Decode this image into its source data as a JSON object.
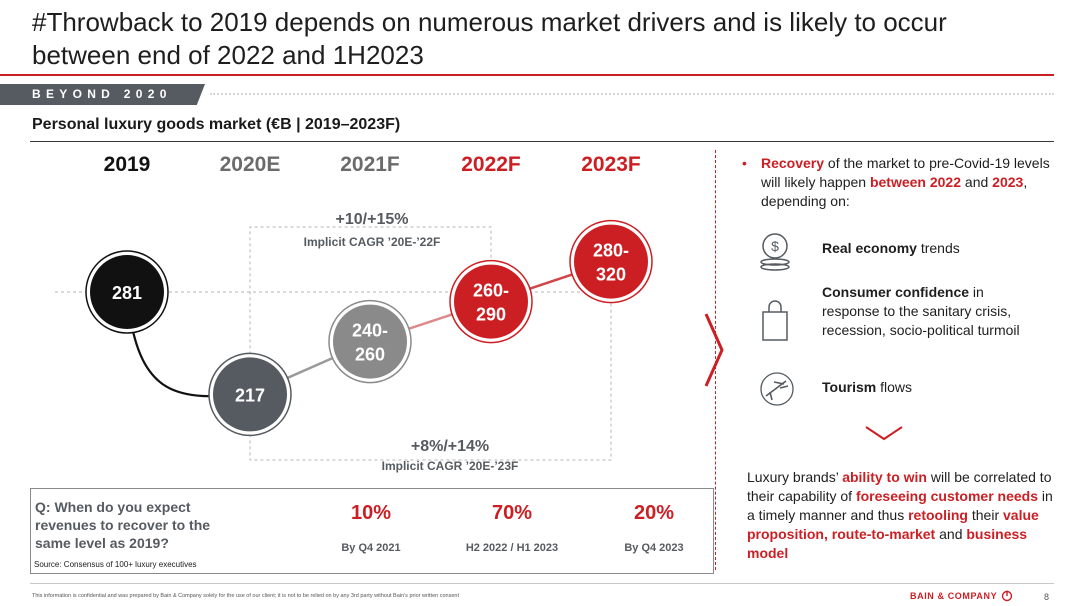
{
  "slide": {
    "title": "#Throwback to 2019 depends on numerous market drivers and is likely to occur between end of 2022 and 1H2023",
    "section_tag": "BEYOND 2020",
    "chart_title": "Personal luxury goods market (€B | 2019–2023F)"
  },
  "chart_data": {
    "type": "line",
    "title": "Personal luxury goods market (€B | 2019–2023F)",
    "categories": [
      "2019",
      "2020E",
      "2021F",
      "2022F",
      "2023F"
    ],
    "values_low": [
      281,
      217,
      240,
      260,
      280
    ],
    "values_high": [
      281,
      217,
      260,
      290,
      320
    ],
    "labels": [
      "281",
      "217",
      "240-\n260",
      "260-\n290",
      "280-\n320"
    ],
    "annotations": [
      {
        "value": "+10/+15%",
        "label": "Implicit CAGR ’20E-’22F"
      },
      {
        "value": "+8%/+14%",
        "label": "Implicit CAGR ’20E-’23F"
      }
    ],
    "colors": {
      "2019": "#111111",
      "2020E": "#555b60",
      "2021F": "#8a8a8a",
      "2022F": "#cc1f24",
      "2023F": "#cc1f24"
    },
    "grid": false
  },
  "survey": {
    "question": "Q: When do you expect revenues to recover to the same level as 2019?",
    "source": "Source: Consensus of 100+ luxury executives",
    "answers": [
      {
        "pct": "10%",
        "when": "By Q4 2021"
      },
      {
        "pct": "70%",
        "when": "H2 2022 / H1 2023"
      },
      {
        "pct": "20%",
        "when": "By Q4 2023"
      }
    ]
  },
  "right": {
    "bullet": {
      "dot": "•",
      "p1": "Recovery",
      "p2": " of the market to pre-Covid-19 levels will likely happen ",
      "p3": "between 2022",
      "p4": " and ",
      "p5": "2023",
      "p6": ", depending on:"
    },
    "drivers": [
      {
        "icon": "coins-dollar-icon",
        "bold": "Real economy",
        "rest": " trends"
      },
      {
        "icon": "shopping-bag-icon",
        "bold": "Consumer confidence",
        "rest": " in response to the sanitary crisis, recession, socio-political turmoil"
      },
      {
        "icon": "airplane-icon",
        "bold": "Tourism",
        "rest": " flows"
      }
    ],
    "conclusion": {
      "a": "Luxury brands’ ",
      "b": "ability to win",
      "c": " will be correlated to their capability of ",
      "d": "foreseeing customer needs",
      "e": " in a timely manner and thus ",
      "f": "retooling",
      "g": " their ",
      "h": "value proposition, route-to-market",
      "i": " and ",
      "j": "business model"
    }
  },
  "footer": {
    "note": "This information is confidential and was prepared by Bain & Company solely for the use of our client; it is not to be relied on by any 3rd party without Bain’s prior written consent",
    "brand": "BAIN & COMPANY",
    "page": "8"
  },
  "colors": {
    "accent": "#cc1f24",
    "dark": "#555b60",
    "mid": "#8a8a8a",
    "black": "#111111"
  }
}
